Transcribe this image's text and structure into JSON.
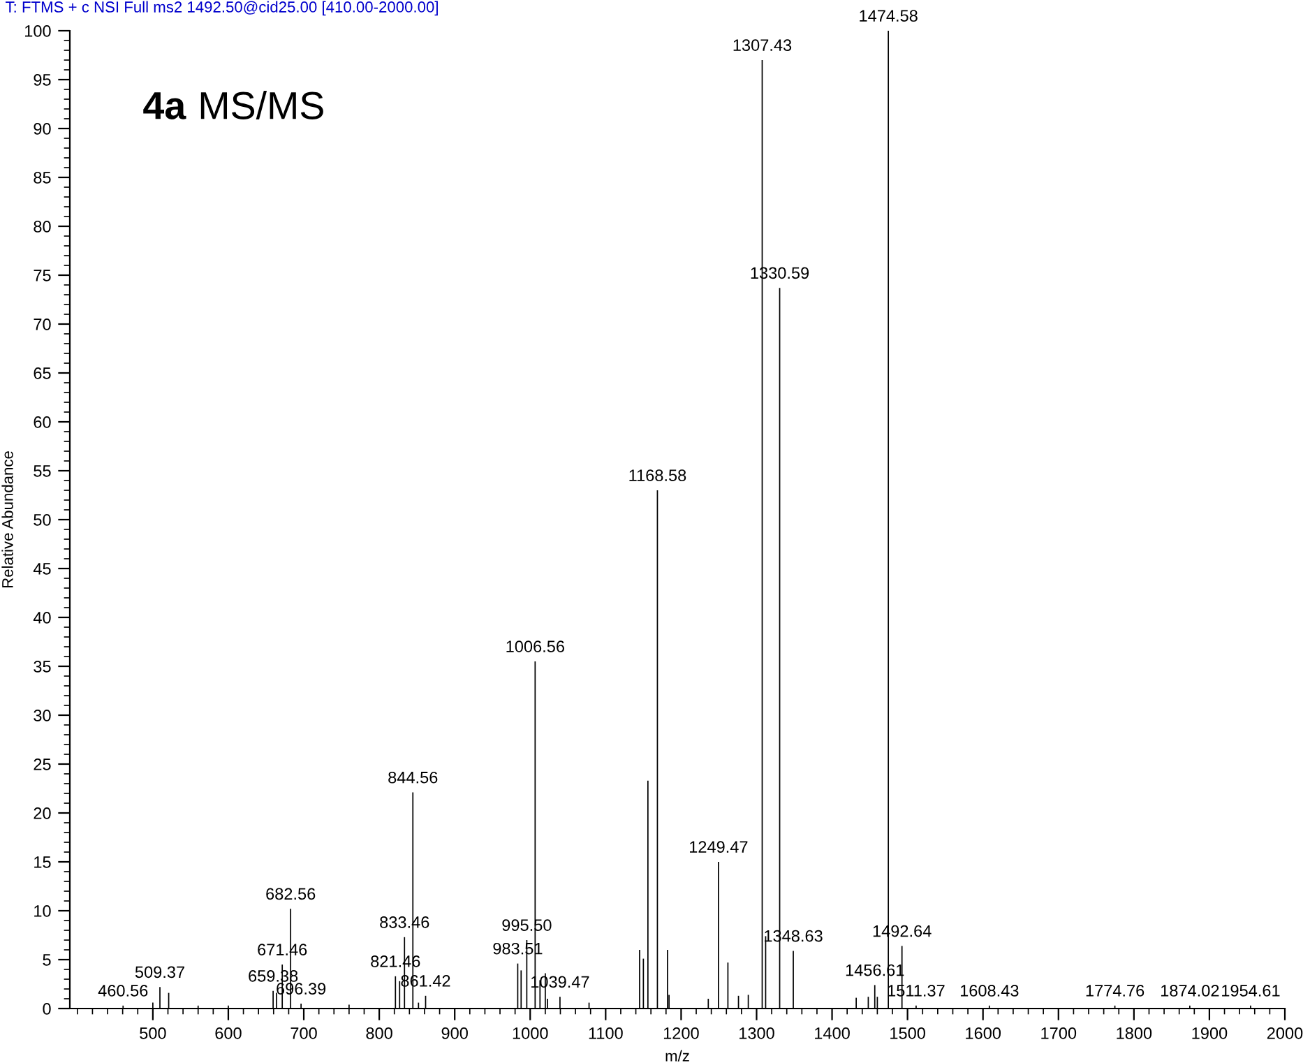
{
  "chart_data": {
    "type": "bar",
    "title": "4a MS/MS",
    "xlabel": "m/z",
    "ylabel": "Relative Abundance",
    "annotations": [
      "T: FTMS + c NSI Full ms2 1492.50@cid25.00 [410.00-2000.00]",
      {
        "text": "460.56",
        "x": 460.56,
        "y": 0.3
      },
      {
        "text": "509.37",
        "x": 509.37,
        "y": 2.2
      },
      {
        "text": "659.38",
        "x": 659.38,
        "y": 1.8
      },
      {
        "text": "671.46",
        "x": 671.46,
        "y": 4.5
      },
      {
        "text": "682.56",
        "x": 682.56,
        "y": 10.2
      },
      {
        "text": "696.39",
        "x": 696.39,
        "y": 0.5
      },
      {
        "text": "821.46",
        "x": 821.46,
        "y": 3.3
      },
      {
        "text": "833.46",
        "x": 833.46,
        "y": 7.3
      },
      {
        "text": "844.56",
        "x": 844.56,
        "y": 22.1
      },
      {
        "text": "861.42",
        "x": 861.42,
        "y": 1.3
      },
      {
        "text": "983.51",
        "x": 983.51,
        "y": 4.6
      },
      {
        "text": "995.50",
        "x": 995.5,
        "y": 7.0
      },
      {
        "text": "1006.56",
        "x": 1006.56,
        "y": 35.5
      },
      {
        "text": "1039.47",
        "x": 1039.47,
        "y": 1.2
      },
      {
        "text": "1168.58",
        "x": 1168.58,
        "y": 53.0
      },
      {
        "text": "1249.47",
        "x": 1249.47,
        "y": 15.0
      },
      {
        "text": "1307.43",
        "x": 1307.43,
        "y": 97.0
      },
      {
        "text": "1330.59",
        "x": 1330.59,
        "y": 73.7
      },
      {
        "text": "1348.63",
        "x": 1348.63,
        "y": 5.9
      },
      {
        "text": "1456.61",
        "x": 1456.61,
        "y": 2.4
      },
      {
        "text": "1474.58",
        "x": 1474.58,
        "y": 100
      },
      {
        "text": "1492.64",
        "x": 1492.64,
        "y": 6.4
      },
      {
        "text": "1511.37",
        "x": 1511.37,
        "y": 0.3
      },
      {
        "text": "1608.43",
        "x": 1608.43,
        "y": 0.3
      },
      {
        "text": "1774.76",
        "x": 1774.76,
        "y": 0.3
      },
      {
        "text": "1874.02",
        "x": 1874.02,
        "y": 0.3
      },
      {
        "text": "1954.61",
        "x": 1954.61,
        "y": 0.3
      }
    ],
    "x": [
      460.56,
      500,
      509.37,
      521,
      560,
      600,
      659.38,
      664,
      671.46,
      682.56,
      696.39,
      760,
      821.46,
      827,
      833.46,
      844.56,
      852,
      861.42,
      983.51,
      988,
      995.5,
      1006.56,
      1013,
      1020,
      1023,
      1039.47,
      1078,
      1145,
      1150,
      1156,
      1168.58,
      1182,
      1184,
      1236,
      1249.47,
      1262,
      1276,
      1289,
      1307.43,
      1312,
      1330.59,
      1348.63,
      1432,
      1448,
      1456.61,
      1460,
      1474.58,
      1492.64,
      1511.37,
      1608.43,
      1774.76,
      1874.02,
      1954.61
    ],
    "series": [
      {
        "color": "#000000",
        "values": [
          0.3,
          0.6,
          2.2,
          1.6,
          0.3,
          0.3,
          1.8,
          1.6,
          4.5,
          10.2,
          0.5,
          0.4,
          3.3,
          2.8,
          7.3,
          22.1,
          0.6,
          1.3,
          4.6,
          3.9,
          7.0,
          35.5,
          2.9,
          3.6,
          1.0,
          1.2,
          0.6,
          6.0,
          5.1,
          23.3,
          53.0,
          6.0,
          1.4,
          1.0,
          15.0,
          4.7,
          1.3,
          1.4,
          97.0,
          7.4,
          73.7,
          5.9,
          1.1,
          1.2,
          2.4,
          1.2,
          100,
          6.4,
          0.3,
          0.3,
          0.3,
          0.3,
          0.3
        ]
      }
    ],
    "xlim": [
      390,
      2000
    ],
    "xticks": [
      500,
      600,
      700,
      800,
      900,
      1000,
      1100,
      1200,
      1300,
      1400,
      1500,
      1600,
      1700,
      1800,
      1900,
      2000
    ],
    "ylim": [
      0,
      100
    ],
    "yticks": [
      0,
      5,
      10,
      15,
      20,
      25,
      30,
      35,
      40,
      45,
      50,
      55,
      60,
      65,
      70,
      75,
      80,
      85,
      90,
      95,
      100
    ],
    "grid": false
  }
}
